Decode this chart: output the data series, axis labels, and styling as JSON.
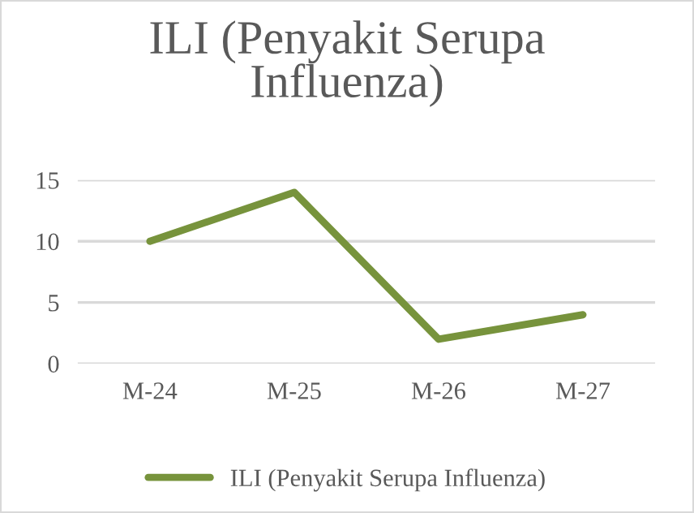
{
  "chart_data": {
    "type": "line",
    "title": "ILI (Penyakit Serupa\nInfluenza)",
    "categories": [
      "M-24",
      "M-25",
      "M-26",
      "M-27"
    ],
    "series": [
      {
        "name": "ILI (Penyakit Serupa Influenza)",
        "color": "#77933c",
        "values": [
          10,
          14,
          2,
          4
        ]
      }
    ],
    "ylim": [
      0,
      15
    ],
    "yticks": [
      0,
      5,
      10,
      15
    ],
    "grid": "y",
    "legend": "bottom",
    "marker": "none",
    "line_style": "solid"
  }
}
